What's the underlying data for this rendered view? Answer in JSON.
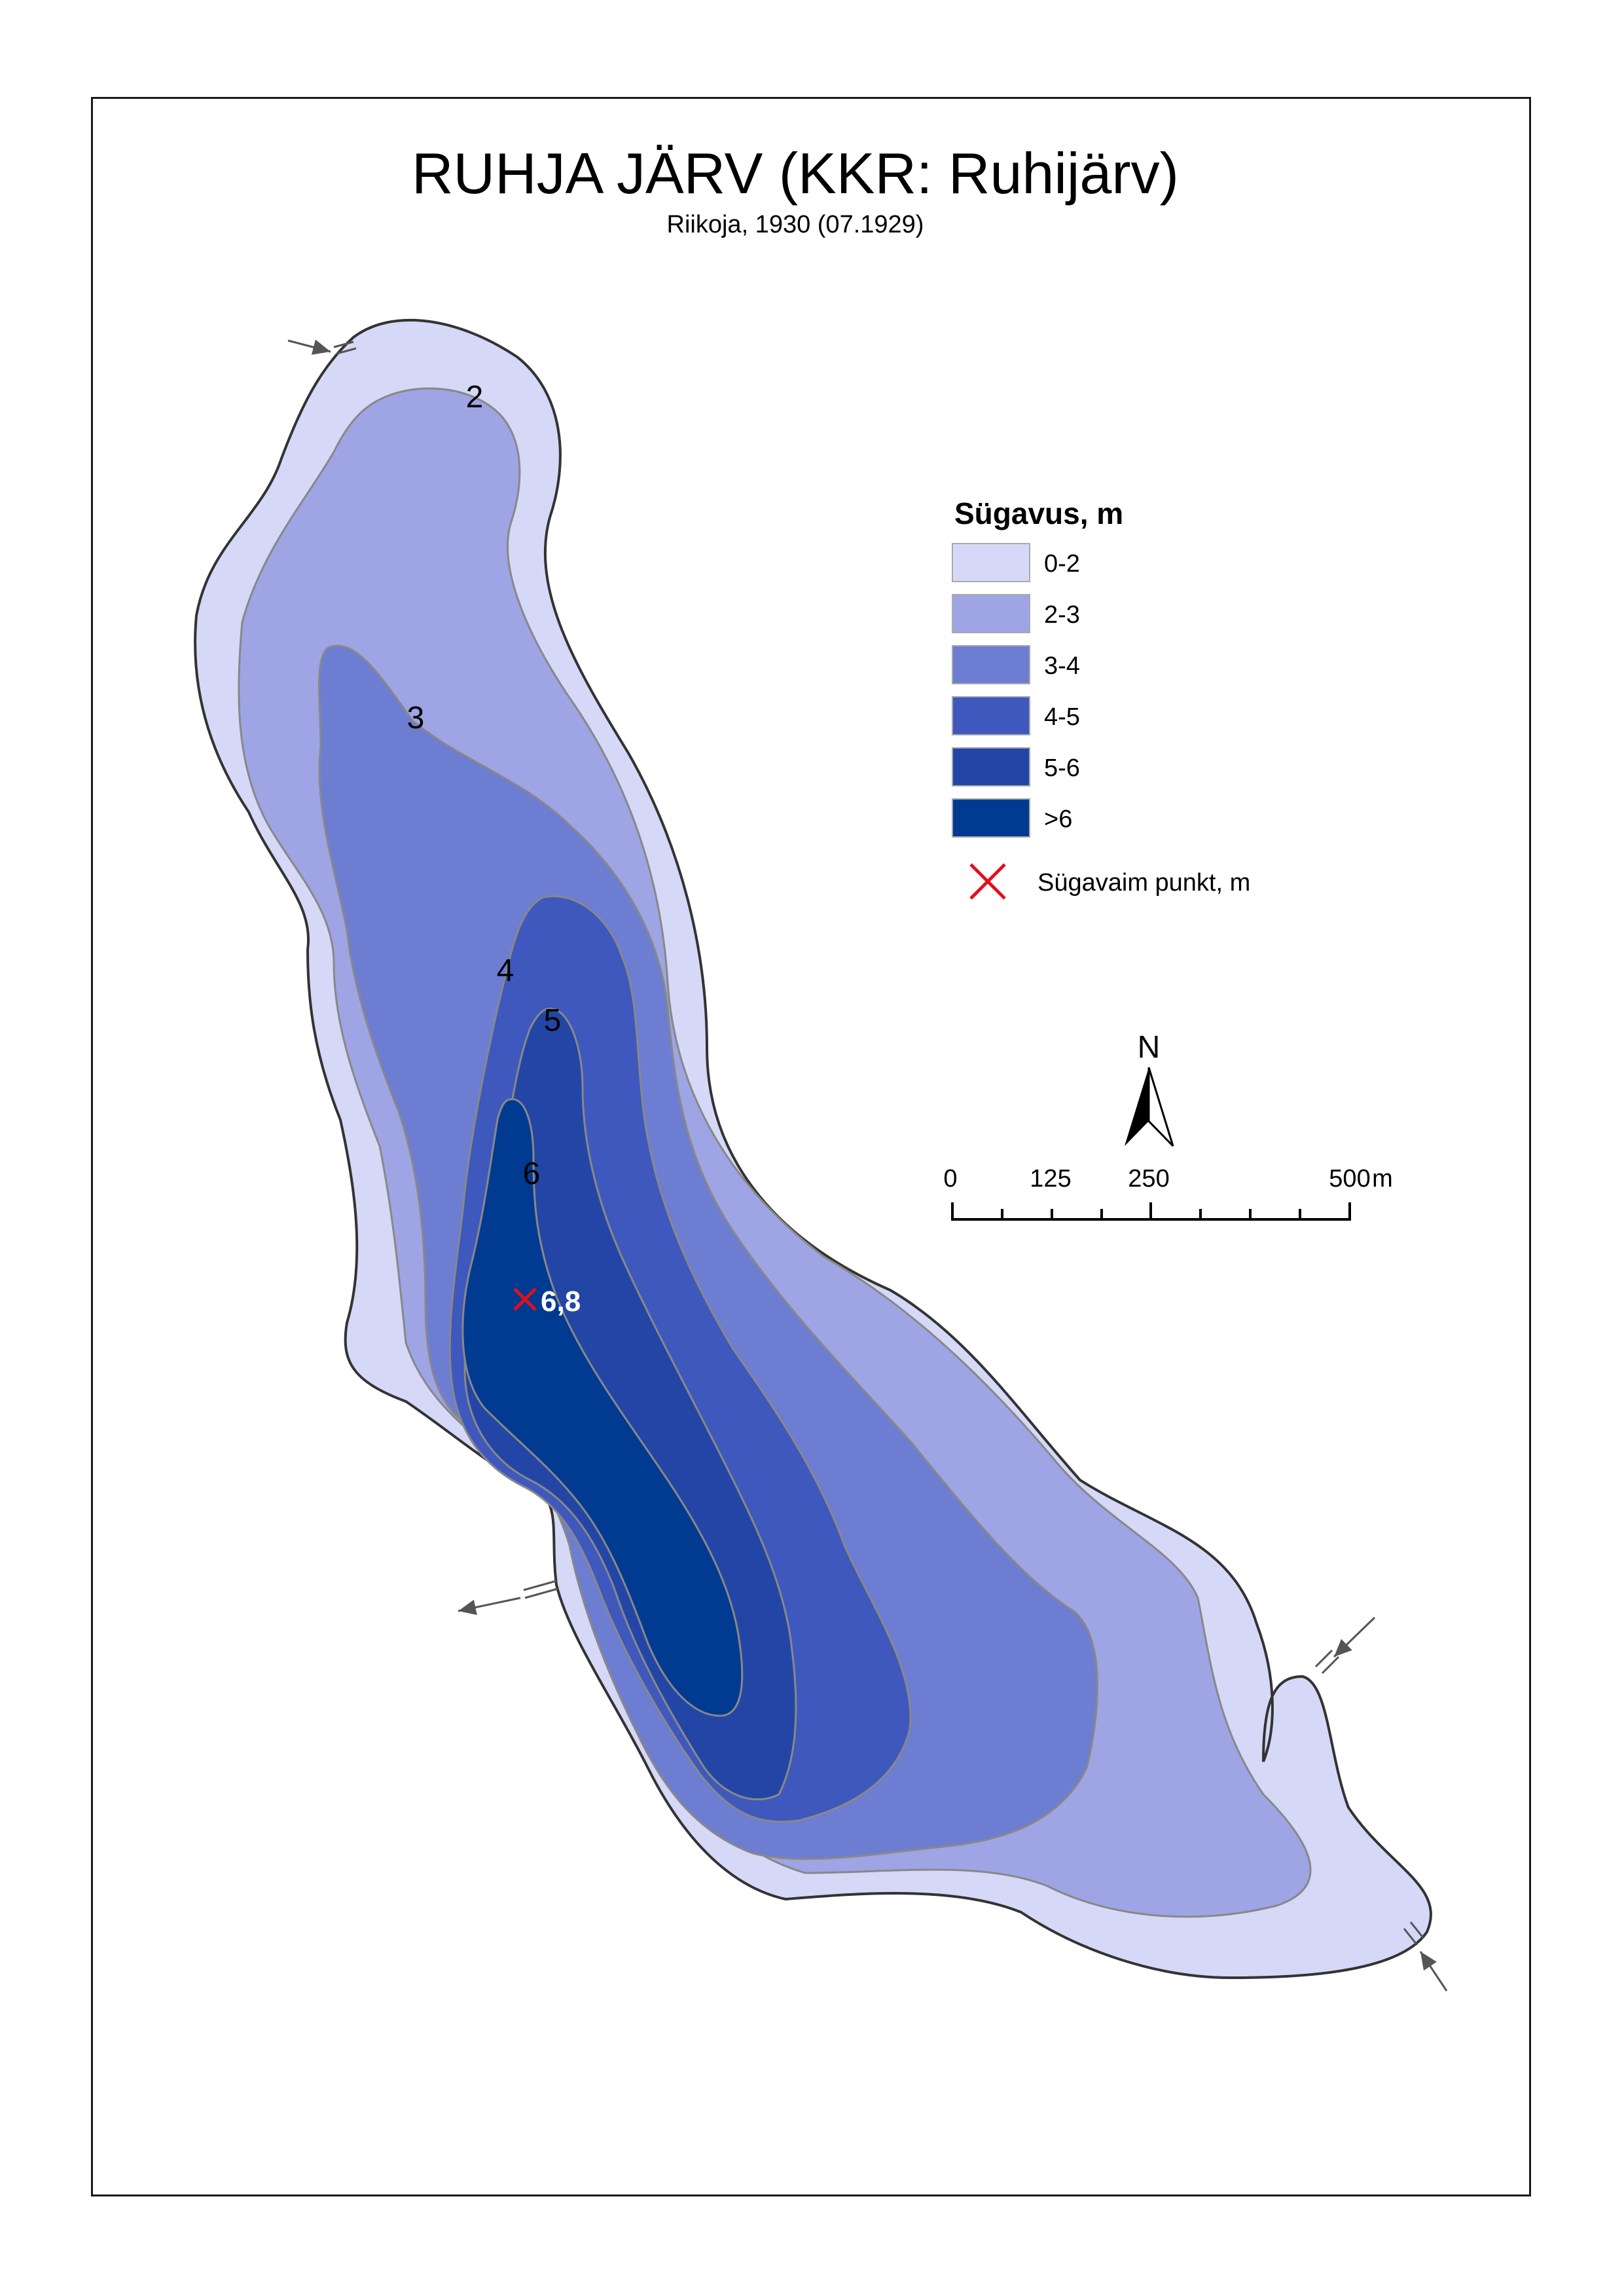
{
  "map": {
    "title": "RUHJA JÄRV (KKR: Ruhijärv)",
    "subtitle": "Riikoja, 1930 (07.1929)"
  },
  "legend": {
    "title": "Sügavus, m",
    "classes": [
      {
        "label": "0-2",
        "color": "#d6d8f7"
      },
      {
        "label": "2-3",
        "color": "#9ea4e4"
      },
      {
        "label": "3-4",
        "color": "#6d7dd2"
      },
      {
        "label": "4-5",
        "color": "#3f58bd"
      },
      {
        "label": "5-6",
        "color": "#2346a6"
      },
      {
        "label": ">6",
        "color": "#003a91"
      }
    ],
    "deepest_point_label": "Sügavaim punkt, m",
    "deepest_point_color": "#e0101e"
  },
  "north_arrow": {
    "label": "N"
  },
  "scale_bar": {
    "ticks": [
      "0",
      "125",
      "250",
      "500"
    ],
    "unit": "m"
  },
  "contour_labels": [
    "2",
    "3",
    "4",
    "5",
    "6"
  ],
  "deepest_point": {
    "value": "6,8"
  }
}
